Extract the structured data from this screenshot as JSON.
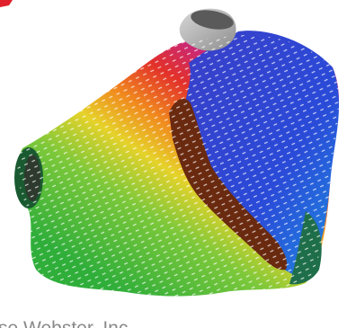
{
  "image": {
    "caption": "se Webster, Inc"
  }
}
